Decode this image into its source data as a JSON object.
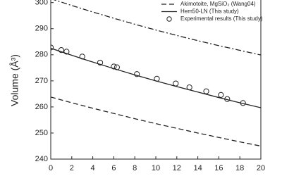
{
  "chart_data": {
    "type": "line",
    "y_label": "Volume (Å³)",
    "xlim": [
      0,
      20
    ],
    "xticks": [
      0,
      2,
      4,
      6,
      8,
      10,
      12,
      14,
      16,
      18,
      20
    ],
    "ylim": [
      240,
      301
    ],
    "yticks": [
      240,
      250,
      260,
      270,
      280,
      290,
      300
    ],
    "x": [
      0,
      2,
      4,
      6,
      8,
      10,
      12,
      14,
      16,
      18,
      20
    ],
    "series": [
      {
        "color": "#222222",
        "linestyle": "dashdot",
        "values": [
          301.5,
          298.9,
          296.4,
          294.0,
          291.7,
          289.5,
          287.4,
          285.4,
          283.5,
          281.7,
          279.9
        ]
      },
      {
        "name": "Akimotoite, MgSiO₃ (Wang04)",
        "color": "#222222",
        "linestyle": "dashed",
        "values": [
          263.8,
          261.6,
          259.5,
          257.5,
          255.5,
          253.6,
          251.8,
          250.0,
          248.3,
          246.6,
          245.0
        ]
      },
      {
        "name": "Hem50-LN (This study)",
        "color": "#222222",
        "linestyle": "solid",
        "values": [
          282.5,
          279.8,
          277.2,
          274.7,
          272.3,
          270.0,
          267.8,
          265.7,
          263.6,
          261.6,
          259.7
        ]
      },
      {
        "name": "Experimental results (This study)",
        "type": "scatter",
        "color": "#222222",
        "marker": "open-circle",
        "x": [
          0,
          1,
          1.5,
          3,
          4.7,
          6,
          6.3,
          8.2,
          10.1,
          11.9,
          13.2,
          14.8,
          16.2,
          16.8,
          18.3
        ],
        "values": [
          282.8,
          281.8,
          281.2,
          279.3,
          277.0,
          275.5,
          275.2,
          272.6,
          270.8,
          269.0,
          267.5,
          266.0,
          264.6,
          263.0,
          261.5
        ]
      }
    ]
  }
}
